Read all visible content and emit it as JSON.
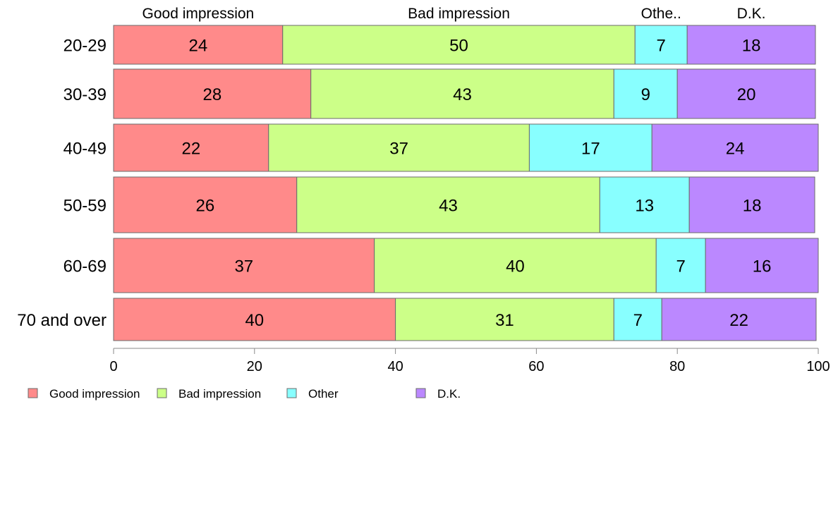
{
  "chart_data": {
    "type": "bar",
    "orientation": "horizontal",
    "stacked": true,
    "categories": [
      "20-29",
      "30-39",
      "40-49",
      "50-59",
      "60-69",
      "70 and over"
    ],
    "series": [
      {
        "name": "Good impression",
        "color": "#ff8a8a",
        "values": [
          24,
          28,
          22,
          26,
          37,
          40
        ],
        "labels": [
          "24",
          "28",
          "22",
          "26",
          "37",
          "40"
        ]
      },
      {
        "name": "Bad impression",
        "color": "#ccff88",
        "values": [
          50,
          43,
          37,
          43,
          40,
          31
        ],
        "labels": [
          "50",
          "43",
          "37",
          "43",
          "40",
          "31"
        ]
      },
      {
        "name": "Other",
        "color": "#88ffff",
        "values": [
          7.4,
          9,
          17.4,
          12.7,
          7,
          6.8
        ],
        "labels": [
          "7",
          "9",
          "17",
          "13",
          "7",
          "7"
        ]
      },
      {
        "name": "D.K.",
        "color": "#bb88ff",
        "values": [
          18.2,
          19.6,
          23.6,
          17.8,
          16,
          21.9
        ],
        "labels": [
          "18",
          "20",
          "24",
          "18",
          "16",
          "22"
        ]
      }
    ],
    "top_labels": [
      "Good impression",
      "Bad impression",
      "Othe..",
      "D.K."
    ],
    "xlim": [
      0,
      100
    ],
    "xticks": [
      "0",
      "20",
      "40",
      "60",
      "80",
      "100"
    ],
    "legend": [
      "Good impression",
      "Bad impression",
      "Other",
      "D.K."
    ],
    "legend_position": "bottom-left",
    "grid": false
  }
}
